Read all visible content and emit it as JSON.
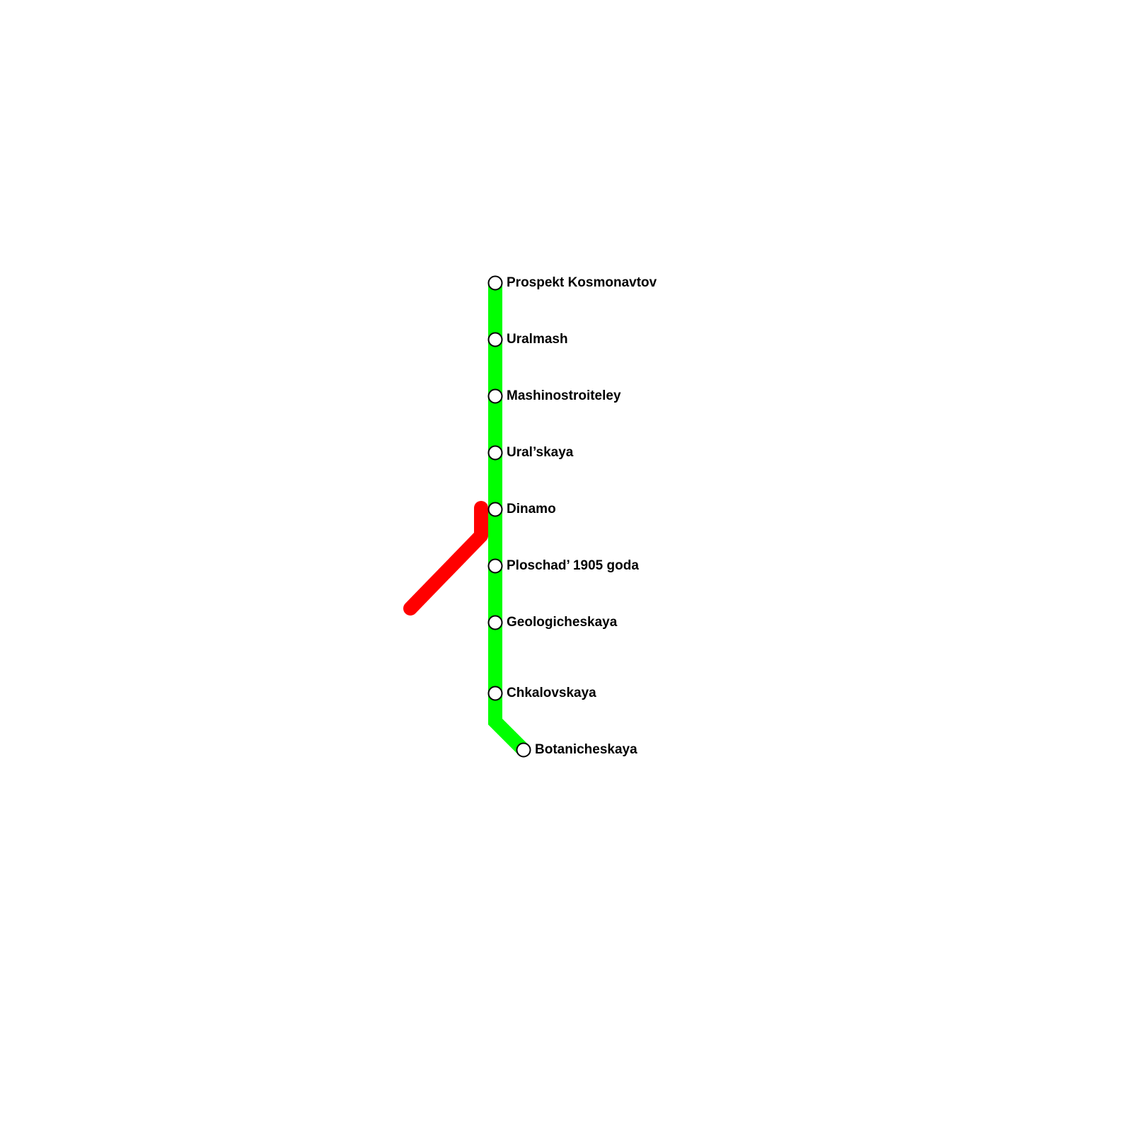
{
  "colors": {
    "green_line": "#00ff00",
    "red_line": "#ff0000",
    "station_fill": "#ffffff",
    "station_stroke": "#000000"
  },
  "stations": [
    {
      "name": "Prospekt Kosmonavtov"
    },
    {
      "name": "Uralmash"
    },
    {
      "name": "Mashinostroiteley"
    },
    {
      "name": "Ural’skaya"
    },
    {
      "name": "Dinamo"
    },
    {
      "name": "Ploschad’ 1905 goda"
    },
    {
      "name": "Geologicheskaya"
    },
    {
      "name": "Chkalovskaya"
    },
    {
      "name": "Botanicheskaya"
    }
  ]
}
